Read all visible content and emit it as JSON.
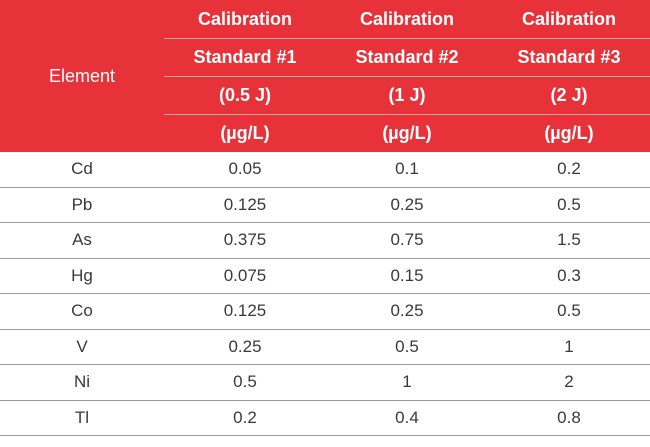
{
  "header": {
    "element_label": "Element",
    "columns": [
      {
        "line1": "Calibration",
        "line2": "Standard #1",
        "line3": "(0.5 J)",
        "line4": "(µg/L)"
      },
      {
        "line1": "Calibration",
        "line2": "Standard #2",
        "line3": "(1 J)",
        "line4": "(µg/L)"
      },
      {
        "line1": "Calibration",
        "line2": "Standard #3",
        "line3": "(2 J)",
        "line4": "(µg/L)"
      }
    ]
  },
  "rows": [
    {
      "element": "Cd",
      "s1": "0.05",
      "s2": "0.1",
      "s3": "0.2"
    },
    {
      "element": "Pb",
      "s1": "0.125",
      "s2": "0.25",
      "s3": "0.5"
    },
    {
      "element": "As",
      "s1": "0.375",
      "s2": "0.75",
      "s3": "1.5"
    },
    {
      "element": "Hg",
      "s1": "0.075",
      "s2": "0.15",
      "s3": "0.3"
    },
    {
      "element": "Co",
      "s1": "0.125",
      "s2": "0.25",
      "s3": "0.5"
    },
    {
      "element": "V",
      "s1": "0.25",
      "s2": "0.5",
      "s3": "1"
    },
    {
      "element": "Ni",
      "s1": "0.5",
      "s2": "1",
      "s3": "2"
    },
    {
      "element": "Tl",
      "s1": "0.2",
      "s2": "0.4",
      "s3": "0.8"
    }
  ],
  "colors": {
    "header_bg": "#e8323a",
    "header_text": "#ffffff",
    "body_text": "#3a3a3a",
    "rule": "#9a9a9a"
  }
}
